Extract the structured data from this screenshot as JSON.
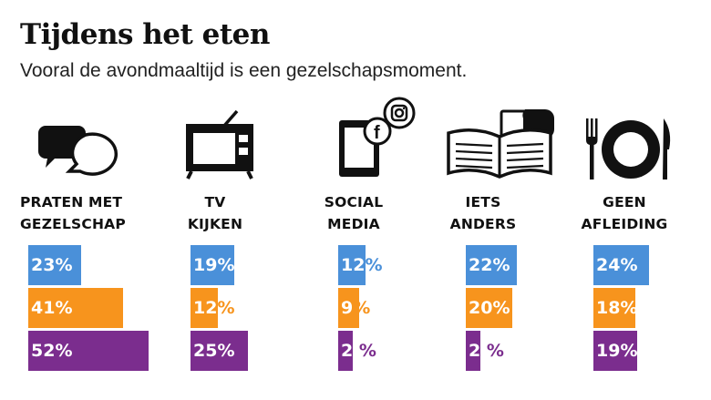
{
  "header": {
    "title": "Tijdens het eten",
    "subtitle": "Vooral de avondmaaltijd is een gezelschapsmoment."
  },
  "icons": [
    "chat-bubbles-icon",
    "tv-icon",
    "tablet-social-media-icon",
    "book-tablet-icon",
    "plate-cutlery-icon"
  ],
  "colors": {
    "series1": "#4a90d9",
    "series2": "#f7941d",
    "series3": "#7b2d8e",
    "label_light": "#ffffff"
  },
  "chart_data": {
    "type": "bar",
    "title": "Tijdens het eten",
    "subtitle": "Vooral de avondmaaltijd is een gezelschapsmoment.",
    "categories": [
      {
        "line1": "PRATEN MET",
        "line2": "GEZELSCHAP"
      },
      {
        "line1": "TV",
        "line2": "KIJKEN"
      },
      {
        "line1": "SOCIAL",
        "line2": "MEDIA"
      },
      {
        "line1": "IETS",
        "line2": "ANDERS"
      },
      {
        "line1": "GEEN",
        "line2": "AFLEIDING"
      }
    ],
    "series": [
      {
        "name": "",
        "color": "#4a90d9",
        "values": [
          23,
          19,
          12,
          22,
          24
        ]
      },
      {
        "name": "",
        "color": "#f7941d",
        "values": [
          41,
          12,
          9,
          20,
          18
        ]
      },
      {
        "name": "",
        "color": "#7b2d8e",
        "values": [
          52,
          25,
          2,
          2,
          19
        ]
      }
    ],
    "labels": [
      [
        "23%",
        "19%",
        "12%",
        "22%",
        "24%"
      ],
      [
        "41%",
        "12%",
        "9%",
        "20%",
        "18%"
      ],
      [
        "52%",
        "25%",
        "2 %",
        "2 %",
        "19%"
      ]
    ],
    "unit": "%"
  }
}
